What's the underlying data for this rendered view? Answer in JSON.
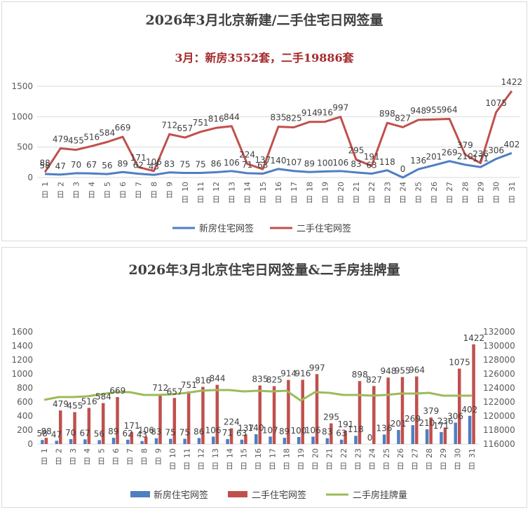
{
  "colors": {
    "new": "#4f7ec2",
    "second": "#c0504d",
    "listing": "#9bbb59",
    "grid": "#d9d9d9",
    "text": "#595959"
  },
  "chart_data": [
    {
      "type": "line",
      "title": "2026年3月北京新建/二手住宅日网签量",
      "subtitle": "3月：新房3552套，二手19886套",
      "categories": [
        "1日",
        "2日",
        "3日",
        "4日",
        "5日",
        "6日",
        "7日",
        "8日",
        "9日",
        "10日",
        "11日",
        "12日",
        "13日",
        "14日",
        "15日",
        "16日",
        "17日",
        "18日",
        "19日",
        "20日",
        "21日",
        "22日",
        "23日",
        "24日",
        "25日",
        "26日",
        "27日",
        "28日",
        "29日",
        "30日",
        "31日"
      ],
      "y_ticks": [
        "0",
        "500",
        "1000",
        "1500"
      ],
      "ylim": [
        0,
        1500
      ],
      "series": [
        {
          "name": "新房住宅网签",
          "values": [
            58,
            47,
            70,
            67,
            56,
            89,
            62,
            43,
            83,
            75,
            75,
            86,
            106,
            71,
            63,
            140,
            107,
            89,
            100,
            106,
            83,
            63,
            118,
            0,
            136,
            201,
            269,
            210,
            171,
            306,
            402
          ]
        },
        {
          "name": "二手住宅网签",
          "values": [
            88,
            479,
            455,
            516,
            584,
            669,
            171,
            106,
            712,
            657,
            751,
            816,
            844,
            224,
            137,
            835,
            825,
            914,
            916,
            997,
            295,
            191,
            898,
            827,
            948,
            955,
            964,
            379,
            236,
            1075,
            1422
          ]
        }
      ]
    },
    {
      "type": "bar",
      "title": "2026年3月北京住宅日网签量&二手房挂牌量",
      "categories": [
        "1日",
        "2日",
        "3日",
        "4日",
        "5日",
        "6日",
        "7日",
        "8日",
        "9日",
        "10日",
        "11日",
        "12日",
        "13日",
        "14日",
        "15日",
        "16日",
        "17日",
        "18日",
        "19日",
        "20日",
        "21日",
        "22日",
        "23日",
        "24日",
        "25日",
        "26日",
        "27日",
        "28日",
        "29日",
        "30日",
        "31日"
      ],
      "y_ticks": [
        "0",
        "200",
        "400",
        "600",
        "800",
        "1000",
        "1200",
        "1400",
        "1600"
      ],
      "ylim": [
        0,
        1600
      ],
      "y2_ticks": [
        "116000",
        "118000",
        "120000",
        "122000",
        "124000",
        "126000",
        "128000",
        "130000",
        "132000"
      ],
      "y2lim": [
        116000,
        132000
      ],
      "series": [
        {
          "name": "新房住宅网签",
          "kind": "bar",
          "values": [
            58,
            47,
            70,
            67,
            56,
            89,
            62,
            43,
            83,
            75,
            75,
            86,
            106,
            71,
            63,
            140,
            107,
            89,
            100,
            106,
            83,
            63,
            118,
            0,
            136,
            201,
            269,
            210,
            171,
            306,
            402
          ]
        },
        {
          "name": "二手住宅网签",
          "kind": "bar",
          "values": [
            88,
            479,
            455,
            516,
            584,
            669,
            171,
            106,
            712,
            657,
            751,
            816,
            844,
            224,
            137,
            835,
            825,
            914,
            916,
            997,
            295,
            191,
            898,
            827,
            948,
            955,
            964,
            379,
            236,
            1075,
            1422
          ]
        },
        {
          "name": "二手房挂牌量",
          "kind": "line",
          "axis": "right",
          "values": [
            122300,
            122700,
            122700,
            122800,
            123100,
            123400,
            123400,
            123000,
            123000,
            123100,
            123300,
            123600,
            123700,
            123700,
            123500,
            123600,
            123500,
            123600,
            122200,
            123400,
            123300,
            123000,
            123000,
            122900,
            123000,
            123200,
            123200,
            123300,
            122900,
            122900,
            122900
          ]
        }
      ]
    }
  ]
}
